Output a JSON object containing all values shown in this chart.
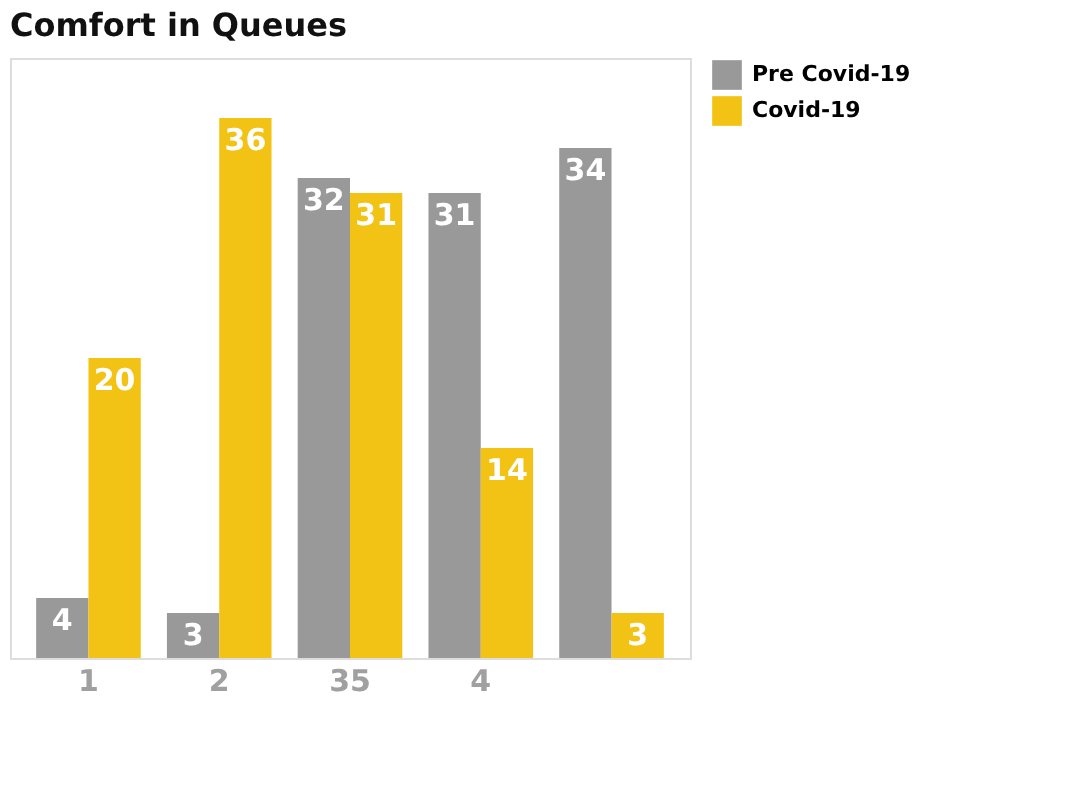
{
  "chart_data": {
    "type": "bar",
    "title": "Comfort in Queues",
    "categories": [
      "1",
      "2",
      "35",
      "4",
      null
    ],
    "series": [
      {
        "name": "Pre Covid-19",
        "color": "#999999",
        "values": [
          4,
          3,
          32,
          31,
          34
        ]
      },
      {
        "name": "Covid-19",
        "color": "#f2c314",
        "values": [
          20,
          36,
          31,
          14,
          3
        ]
      }
    ],
    "data_labels": true,
    "legend": "top right",
    "grid": false,
    "tick_labels": "x"
  }
}
